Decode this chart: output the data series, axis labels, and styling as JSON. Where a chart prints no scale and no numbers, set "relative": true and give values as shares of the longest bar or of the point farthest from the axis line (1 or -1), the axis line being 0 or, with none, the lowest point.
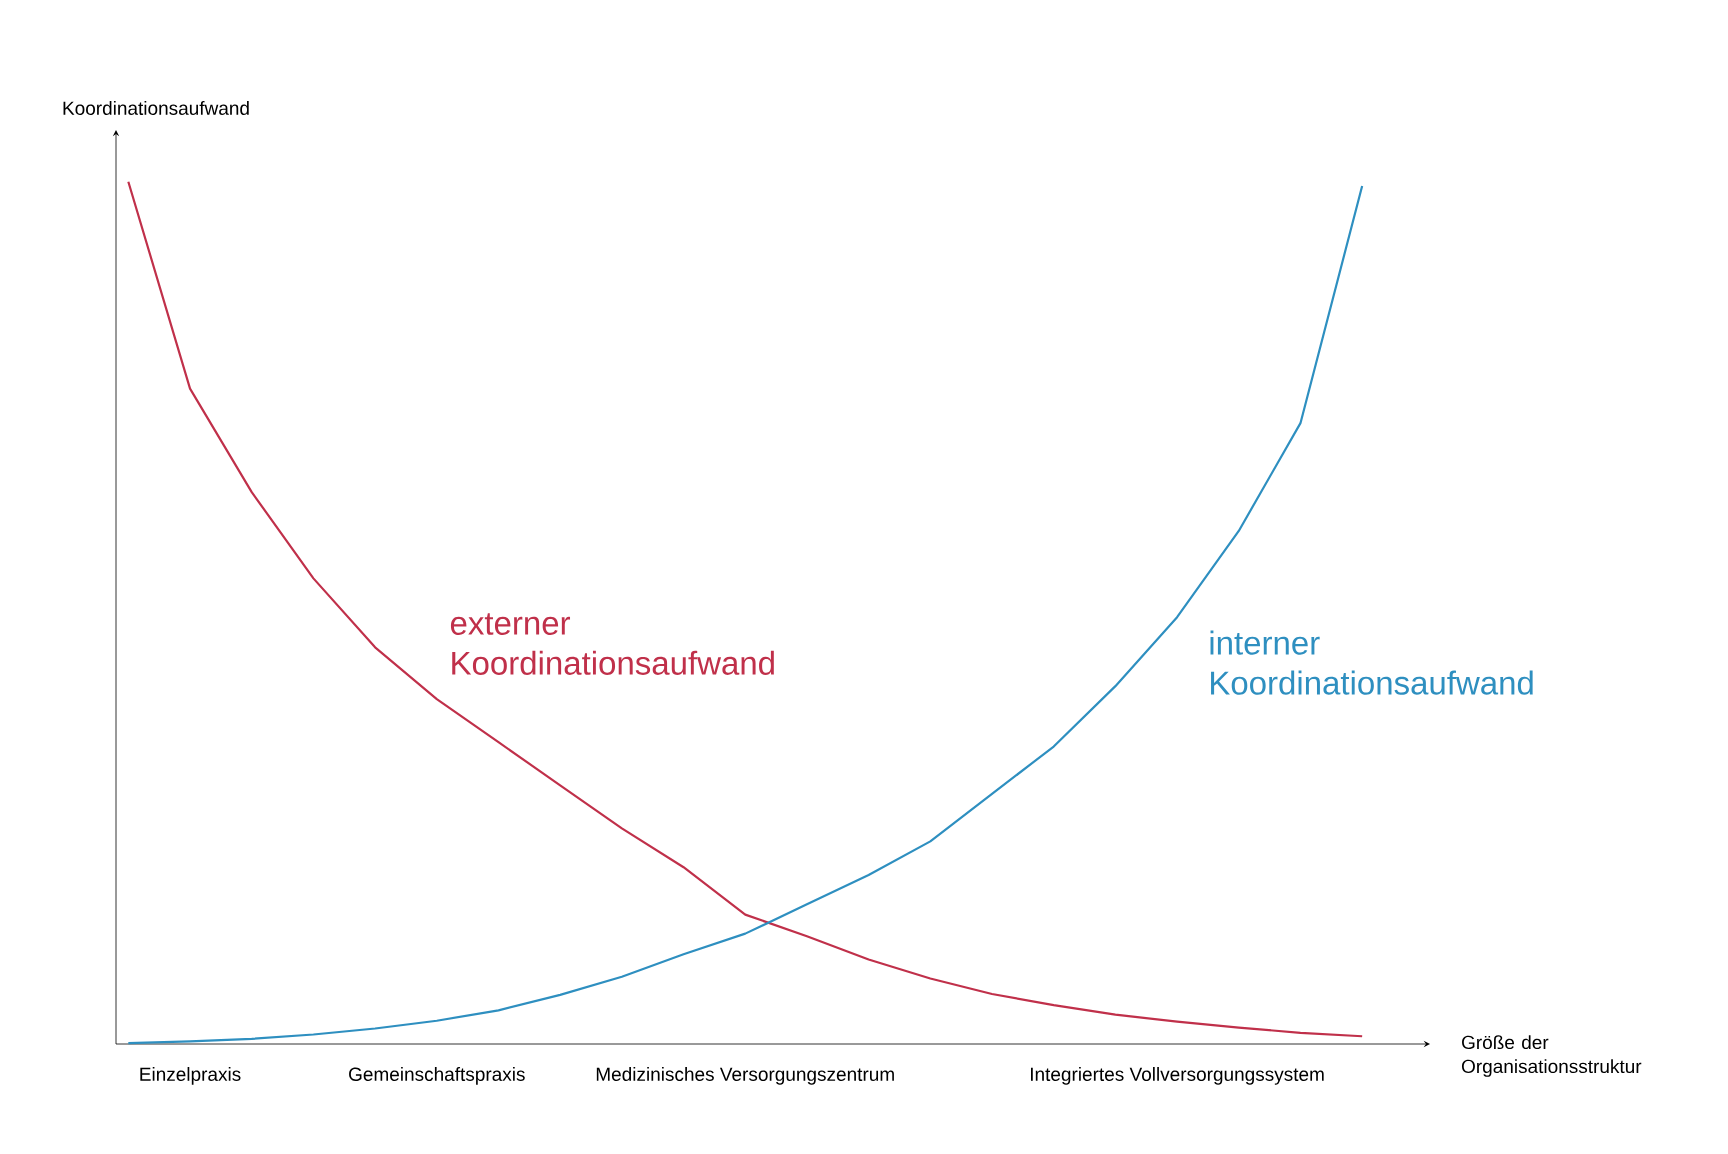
{
  "chart_data": {
    "type": "line",
    "relative": true,
    "xlabel": "Größe der Organisationsstruktur",
    "ylabel": "Koordinationsaufwand",
    "categories": [
      null,
      "Einzelpraxis",
      null,
      null,
      null,
      "Gemeinschaftspraxis",
      null,
      null,
      null,
      null,
      "Medizinisches Versorgungszentrum",
      null,
      null,
      null,
      null,
      null,
      null,
      "Integriertes Vollversorgungssystem",
      null,
      null,
      null
    ],
    "series": [
      {
        "name": "externer Koordinationsaufwand",
        "color": "#c0304a",
        "values": [
          1.0,
          0.76,
          0.64,
          0.54,
          0.46,
          0.4,
          0.35,
          0.3,
          0.25,
          0.205,
          0.15,
          0.125,
          0.098,
          0.076,
          0.058,
          0.045,
          0.034,
          0.026,
          0.019,
          0.013,
          0.009
        ]
      },
      {
        "name": "interner Koordinationsaufwand",
        "color": "#2e8fc0",
        "values": [
          0.001,
          0.003,
          0.006,
          0.011,
          0.018,
          0.027,
          0.039,
          0.057,
          0.078,
          0.104,
          0.128,
          0.162,
          0.196,
          0.235,
          0.29,
          0.345,
          0.415,
          0.495,
          0.595,
          0.72,
          0.995
        ]
      }
    ]
  }
}
